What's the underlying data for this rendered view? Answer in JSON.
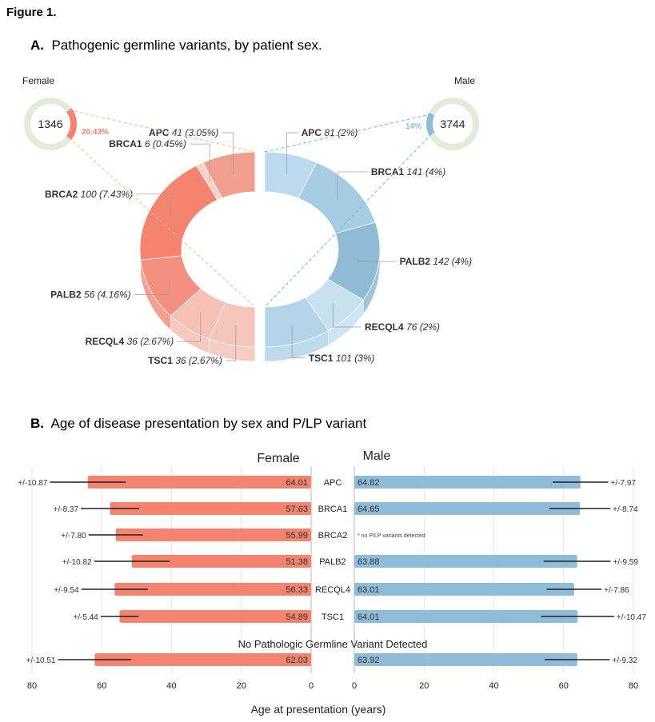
{
  "figure_title": "Figure 1.",
  "panelA": {
    "letter": "A.",
    "title": "Pathogenic germline variants, by patient sex."
  },
  "panelB": {
    "letter": "B.",
    "title": "Age of disease presentation by sex and P/LP variant"
  },
  "colors": {
    "female": "#f4836f",
    "male": "#8fbcd8",
    "total_ring": "#e2ecd8",
    "female_connector": "#f0b98a",
    "male_connector": "#6fbcc0",
    "error_bar": "#222222",
    "grid": "#e6e6e6"
  },
  "chart_data": [
    {
      "type": "pie",
      "title": "Pathogenic germline variants, by patient sex.",
      "groups": [
        {
          "name": "Female",
          "total": "1346",
          "variant_share_label": "20.43%",
          "variant_share": 20.43,
          "slices": [
            {
              "gene": "APC",
              "count": 41,
              "pct_label": "(3.05%)",
              "color": "#f19f8e"
            },
            {
              "gene": "BRCA1",
              "count": 6,
              "pct_label": "(0.45%)",
              "color": "#f7d2c9"
            },
            {
              "gene": "BRCA2",
              "count": 100,
              "pct_label": "(7.43%)",
              "color": "#f4836f"
            },
            {
              "gene": "PALB2",
              "count": 56,
              "pct_label": "(4.16%)",
              "color": "#f59080"
            },
            {
              "gene": "RECQL4",
              "count": 36,
              "pct_label": "(2.67%)",
              "color": "#f5c0b5"
            },
            {
              "gene": "TSC1",
              "count": 36,
              "pct_label": "(2.67%)",
              "color": "#f5c4ba"
            }
          ]
        },
        {
          "name": "Male",
          "total": "3744",
          "variant_share_label": "14%",
          "variant_share": 14,
          "slices": [
            {
              "gene": "APC",
              "count": 81,
              "pct_label": "(2%)",
              "color": "#bcdaee"
            },
            {
              "gene": "BRCA1",
              "count": 141,
              "pct_label": "(4%)",
              "color": "#a7cde5"
            },
            {
              "gene": "PALB2",
              "count": 142,
              "pct_label": "(4%)",
              "color": "#90bbd7"
            },
            {
              "gene": "RECQL4",
              "count": 76,
              "pct_label": "(2%)",
              "color": "#c8e1f0"
            },
            {
              "gene": "TSC1",
              "count": 101,
              "pct_label": "(3%)",
              "color": "#b3d4ea"
            }
          ]
        }
      ]
    },
    {
      "type": "bar",
      "orientation": "horizontal-butterfly",
      "title": "Age of disease presentation by sex and P/LP variant",
      "xlabel": "Age at presentation (years)",
      "xlim": [
        0,
        80
      ],
      "ticks": [
        "0",
        "20",
        "40",
        "60",
        "80"
      ],
      "tick_values": [
        0,
        20,
        40,
        60,
        80
      ],
      "grid": true,
      "series_labels": {
        "female": "Female",
        "male": "Male"
      },
      "section_label": "No Pathologic Germline Variant Detected",
      "no_data_note": "* no P/LP variants detected",
      "categories": [
        "APC",
        "BRCA1",
        "BRCA2",
        "PALB2",
        "RECQL4",
        "TSC1",
        ""
      ],
      "female": [
        {
          "mean": 64.01,
          "label": "64.01",
          "sd": 10.87,
          "sd_label": "+/-10.87"
        },
        {
          "mean": 57.63,
          "label": "57.63",
          "sd": 8.37,
          "sd_label": "+/-8.37"
        },
        {
          "mean": 55.99,
          "label": "55.99",
          "sd": 7.8,
          "sd_label": "+/-7.80"
        },
        {
          "mean": 51.38,
          "label": "51.38",
          "sd": 10.82,
          "sd_label": "+/-10.82"
        },
        {
          "mean": 56.33,
          "label": "56.33",
          "sd": 9.54,
          "sd_label": "+/-9.54"
        },
        {
          "mean": 54.89,
          "label": "54.89",
          "sd": 5.44,
          "sd_label": "+/-5.44"
        },
        {
          "mean": 62.03,
          "label": "62.03",
          "sd": 10.51,
          "sd_label": "+/-10.51"
        }
      ],
      "male": [
        {
          "mean": 64.82,
          "label": "64.82",
          "sd": 7.97,
          "sd_label": "+/-7.97"
        },
        {
          "mean": 64.65,
          "label": "64.65",
          "sd": 8.74,
          "sd_label": "+/-8.74"
        },
        null,
        {
          "mean": 63.88,
          "label": "63.88",
          "sd": 9.59,
          "sd_label": "+/-9.59"
        },
        {
          "mean": 63.01,
          "label": "63.01",
          "sd": 7.86,
          "sd_label": "+/-7.86"
        },
        {
          "mean": 64.01,
          "label": "64.01",
          "sd": 10.47,
          "sd_label": "+/-10.47"
        },
        {
          "mean": 63.92,
          "label": "63.92",
          "sd": 9.32,
          "sd_label": "+/-9.32"
        }
      ]
    }
  ]
}
